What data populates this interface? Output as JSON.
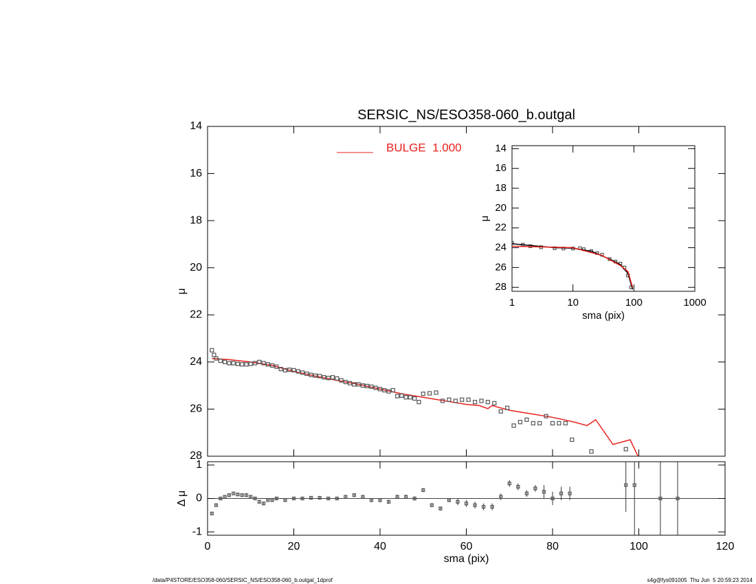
{
  "chart_data": [
    {
      "type": "scatter",
      "title": "SERSIC_NS/ESO358-060_b.outgal",
      "ylabel": "μ",
      "xlim": [
        0,
        120
      ],
      "xticks": [
        0,
        20,
        40,
        60,
        80,
        100,
        120
      ],
      "show_xtick_labels": false,
      "ylim": [
        14,
        28
      ],
      "y_reversed": true,
      "yticks": [
        14,
        16,
        18,
        20,
        22,
        24,
        26,
        28
      ],
      "series": [
        {
          "name": "BULGE  1.000",
          "type": "line",
          "color": "#e8201c",
          "x": [
            1,
            5,
            10,
            15,
            20,
            25,
            30,
            35,
            40,
            45,
            50,
            55,
            60,
            63,
            65,
            66,
            70,
            75,
            80,
            85,
            88,
            90,
            94,
            98,
            99.8
          ],
          "values": [
            23.85,
            23.9,
            24.0,
            24.15,
            24.4,
            24.6,
            24.78,
            24.95,
            25.15,
            25.35,
            25.5,
            25.65,
            25.8,
            25.85,
            25.98,
            25.85,
            26.05,
            26.2,
            26.35,
            26.55,
            26.7,
            26.45,
            27.5,
            27.3,
            28.0
          ]
        },
        {
          "type": "scatter",
          "color": "#555555",
          "x": [
            1,
            1.5,
            2,
            3,
            4,
            5,
            6,
            7,
            8,
            9,
            10,
            11,
            12,
            13,
            14,
            15,
            16,
            17,
            18,
            19,
            20,
            21,
            22,
            23,
            24,
            25,
            26,
            27,
            28,
            29,
            30,
            31,
            32,
            33,
            34,
            35,
            36,
            37,
            38,
            39,
            40,
            41,
            42,
            43,
            44,
            45,
            46,
            47,
            48,
            49,
            50,
            51.5,
            53,
            54.5,
            56,
            57.5,
            59,
            60.5,
            62,
            63.5,
            65,
            66.5,
            68,
            69.5,
            71,
            72.5,
            74,
            75.5,
            77,
            78.5,
            80,
            81.5,
            83,
            84.5,
            89,
            97
          ],
          "values": [
            23.5,
            23.7,
            23.85,
            23.95,
            24.0,
            24.05,
            24.05,
            24.08,
            24.1,
            24.1,
            24.08,
            24.05,
            24.0,
            24.05,
            24.1,
            24.15,
            24.2,
            24.3,
            24.35,
            24.33,
            24.35,
            24.4,
            24.45,
            24.5,
            24.55,
            24.58,
            24.6,
            24.65,
            24.68,
            24.65,
            24.7,
            24.78,
            24.85,
            24.9,
            24.95,
            24.95,
            25.0,
            25.02,
            25.05,
            25.1,
            25.15,
            25.2,
            25.25,
            25.2,
            25.45,
            25.43,
            25.5,
            25.5,
            25.55,
            25.7,
            25.35,
            25.33,
            25.3,
            25.65,
            25.6,
            25.65,
            25.6,
            25.6,
            25.7,
            25.65,
            25.7,
            25.75,
            26.1,
            25.95,
            26.7,
            26.55,
            26.45,
            26.6,
            26.6,
            26.3,
            26.6,
            26.6,
            26.6,
            27.3,
            27.8,
            27.7
          ]
        }
      ]
    },
    {
      "type": "errorbar",
      "xlabel": "sma (pix)",
      "ylabel": "Δ μ",
      "xlim": [
        0,
        120
      ],
      "xticks": [
        0,
        20,
        40,
        60,
        80,
        100,
        120
      ],
      "ylim": [
        -1.1,
        1.1
      ],
      "yticks": [
        -1,
        0,
        1
      ],
      "hline": 0,
      "x": [
        1,
        2,
        3,
        4,
        5,
        6,
        7,
        8,
        9,
        10,
        11,
        12,
        13,
        14,
        15,
        16,
        18,
        20,
        22,
        24,
        26,
        28,
        30,
        32,
        34,
        36,
        38,
        40,
        42,
        44,
        46,
        48,
        50,
        52,
        54,
        56,
        58,
        60,
        62,
        64,
        66,
        68,
        70,
        72,
        74,
        76,
        78,
        80,
        82,
        84,
        97,
        99,
        105,
        109
      ],
      "values": [
        -0.45,
        -0.2,
        0.0,
        0.05,
        0.1,
        0.15,
        0.12,
        0.1,
        0.1,
        0.05,
        0.0,
        -0.1,
        -0.15,
        -0.05,
        -0.05,
        0.0,
        -0.05,
        0.0,
        0.0,
        0.02,
        0.02,
        0.0,
        0.0,
        0.05,
        0.1,
        0.05,
        -0.05,
        -0.05,
        -0.1,
        0.05,
        0.05,
        0.0,
        0.25,
        -0.2,
        -0.3,
        -0.05,
        -0.1,
        -0.15,
        -0.2,
        -0.25,
        -0.25,
        0.05,
        0.45,
        0.35,
        0.15,
        0.3,
        0.2,
        0.0,
        0.15,
        0.15,
        0.4,
        0.4,
        0.0,
        0.0
      ],
      "errors": [
        0.03,
        0.03,
        0.03,
        0.03,
        0.03,
        0.03,
        0.03,
        0.03,
        0.03,
        0.03,
        0.03,
        0.03,
        0.03,
        0.03,
        0.03,
        0.03,
        0.04,
        0.04,
        0.04,
        0.04,
        0.04,
        0.04,
        0.04,
        0.04,
        0.04,
        0.04,
        0.06,
        0.06,
        0.06,
        0.06,
        0.06,
        0.06,
        0.06,
        0.06,
        0.06,
        0.06,
        0.1,
        0.1,
        0.1,
        0.1,
        0.1,
        0.1,
        0.1,
        0.1,
        0.1,
        0.1,
        0.2,
        0.2,
        0.2,
        0.2,
        0.8,
        1.5,
        2,
        2
      ],
      "color": "#555555"
    },
    {
      "type": "scatter",
      "xlabel": "sma (pix)",
      "ylabel": "μ",
      "xscale": "log",
      "xlim": [
        1,
        1000
      ],
      "xticks": [
        1,
        10,
        100,
        1000
      ],
      "ylim": [
        13.7,
        28.4
      ],
      "y_reversed": true,
      "yticks": [
        14,
        16,
        18,
        20,
        22,
        24,
        26,
        28
      ],
      "series": [
        {
          "type": "scatter",
          "color": "#555555",
          "x": [
            1,
            1.5,
            2,
            3,
            5,
            7,
            10,
            13,
            15,
            20,
            25,
            30,
            40,
            50,
            60,
            70,
            80,
            90
          ],
          "values": [
            23.5,
            23.7,
            23.85,
            23.95,
            24.05,
            24.08,
            24.08,
            24.05,
            24.15,
            24.35,
            24.55,
            24.7,
            25.15,
            25.4,
            25.6,
            26.0,
            26.8,
            28.0
          ]
        },
        {
          "type": "line",
          "color": "#000000",
          "x": [
            1,
            5,
            10,
            20,
            40,
            60,
            80,
            95
          ],
          "values": [
            23.6,
            24.0,
            24.05,
            24.35,
            25.15,
            25.7,
            26.6,
            28.2
          ]
        },
        {
          "type": "line",
          "color": "#e8201c",
          "x": [
            1,
            10,
            30,
            60,
            80,
            95
          ],
          "values": [
            23.85,
            24.0,
            24.78,
            25.8,
            26.4,
            28.0
          ]
        }
      ]
    }
  ],
  "footer": {
    "left": "/data/P4STORE/ESO358-060/SERSIC_NS/ESO358-060_b.outgal_1dprof",
    "right": "s4g@fys091005  Thu Jun  5 20:59:23 2014"
  }
}
